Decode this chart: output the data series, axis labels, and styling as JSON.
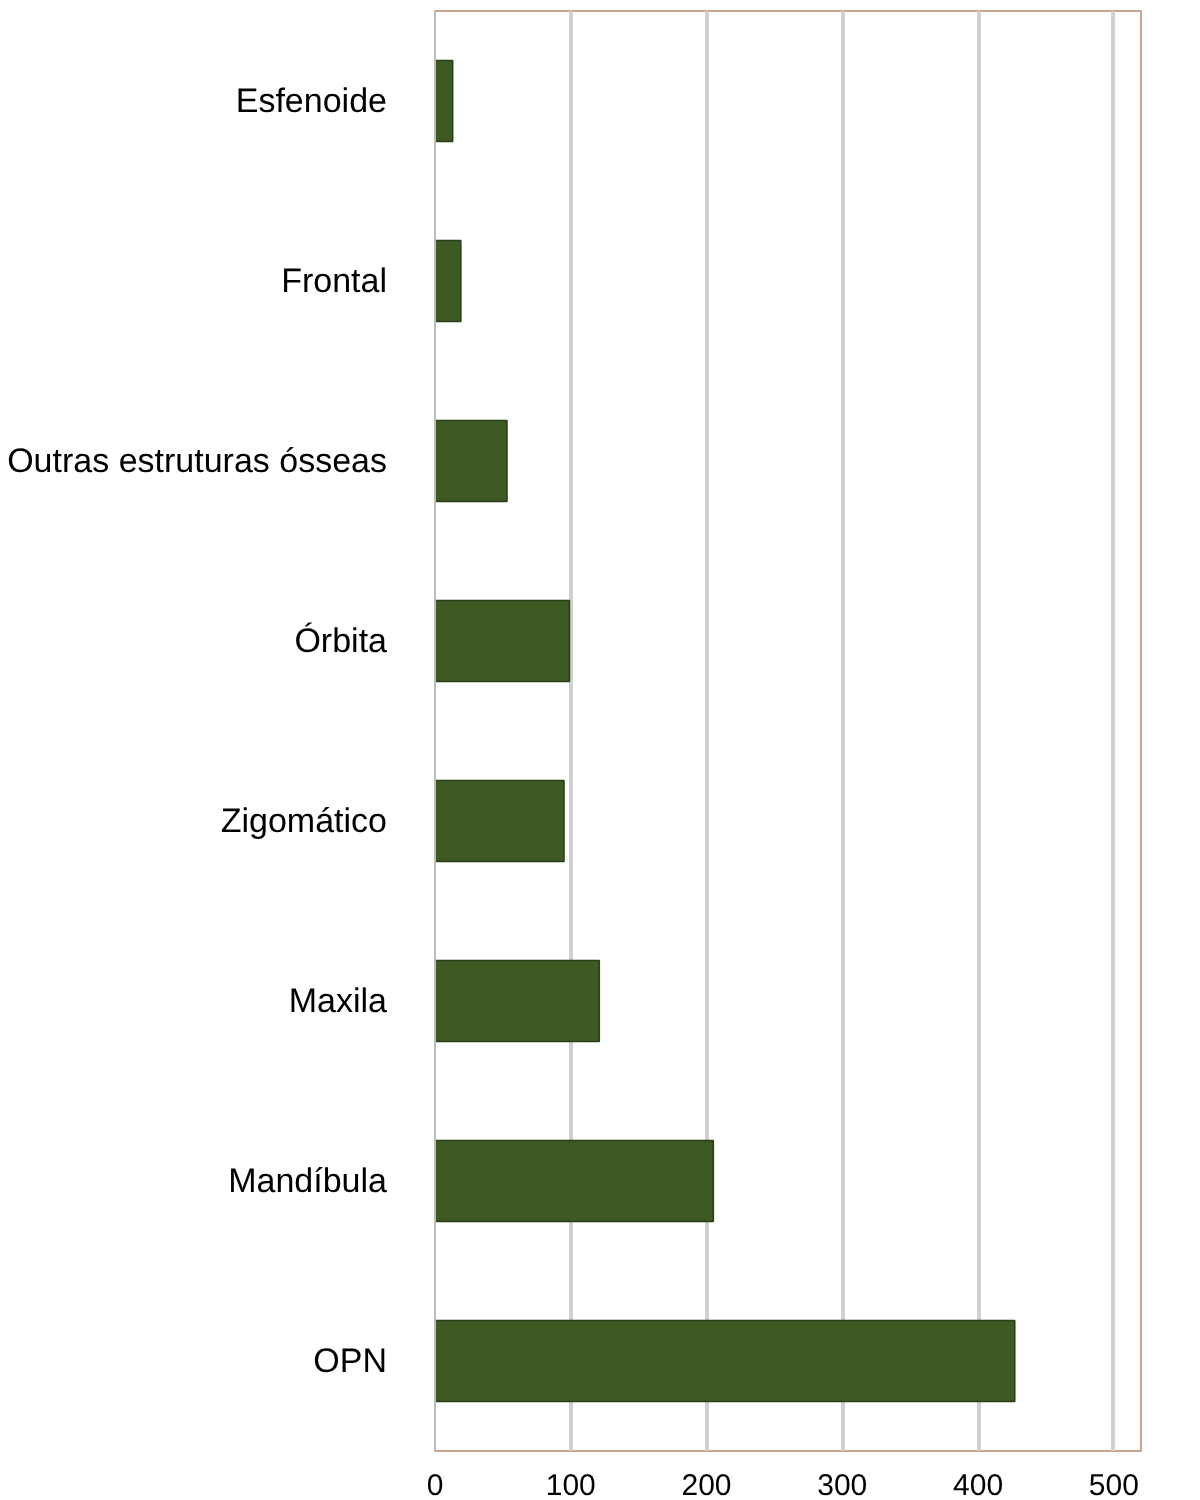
{
  "chart_data": {
    "type": "bar",
    "orientation": "horizontal",
    "categories": [
      "Esfenoide",
      "Frontal",
      "Outras estruturas ósseas",
      "Órbita",
      "Zigomático",
      "Maxila",
      "Mandíbula",
      "OPN"
    ],
    "values": [
      13,
      19,
      53,
      99,
      95,
      121,
      205,
      427
    ],
    "color": "#3d5a23",
    "xlim": [
      0,
      520
    ],
    "xticks": [
      0,
      100,
      200,
      300,
      400,
      500
    ],
    "grid": "x"
  }
}
